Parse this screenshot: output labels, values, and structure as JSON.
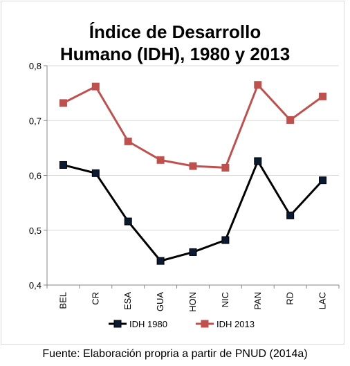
{
  "chart_data": {
    "type": "line",
    "title_line1": "Índice de Desarrollo",
    "title_line2": "Humano (IDH), 1980 y 2013",
    "categories": [
      "BEL",
      "CR",
      "ESA",
      "GUA",
      "HON",
      "NIC",
      "PAN",
      "RD",
      "LAC"
    ],
    "series": [
      {
        "name": "IDH 1980",
        "color": "#000000",
        "marker_fill": "#0a1a33",
        "values": [
          0.619,
          0.604,
          0.516,
          0.444,
          0.46,
          0.482,
          0.626,
          0.527,
          0.591
        ]
      },
      {
        "name": "IDH 2013",
        "color": "#c0504d",
        "marker_fill": "#c0504d",
        "values": [
          0.732,
          0.762,
          0.662,
          0.628,
          0.617,
          0.614,
          0.765,
          0.701,
          0.744
        ]
      }
    ],
    "ylim": [
      0.4,
      0.8
    ],
    "yticks": [
      "0,4",
      "0,5",
      "0,6",
      "0,7",
      "0,8"
    ],
    "yticks_values": [
      0.4,
      0.5,
      0.6,
      0.7,
      0.8
    ],
    "grid": true,
    "legend_position": "bottom"
  },
  "source_text": "Fuente: Elaboración propria a partir de PNUD (2014a)"
}
